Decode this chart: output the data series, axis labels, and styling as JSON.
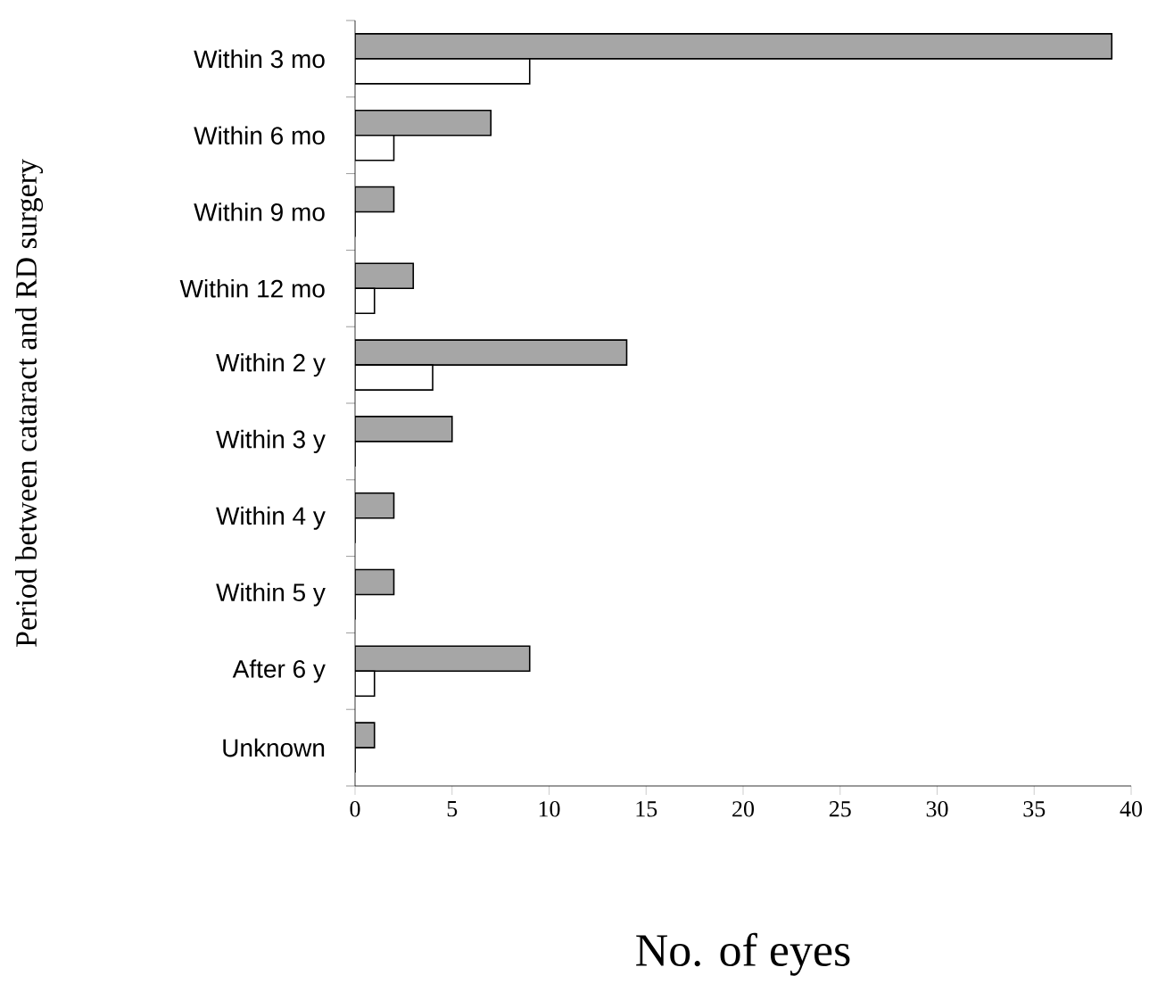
{
  "chart_data": {
    "type": "bar",
    "orientation": "horizontal",
    "xlabel": "No. of eyes",
    "ylabel": "Period between cataract and RD surgery",
    "categories": [
      "Within 3 mo",
      "Within 6 mo",
      "Within 9 mo",
      "Within 12 mo",
      "Within 2 y",
      "Within 3 y",
      "Within 4 y",
      "Within 5 y",
      "After 6 y",
      "Unknown"
    ],
    "series": [
      {
        "color": "#a6a6a6",
        "values": [
          39,
          7,
          2,
          3,
          14,
          5,
          2,
          2,
          9,
          1
        ]
      },
      {
        "color": "#ffffff",
        "values": [
          9,
          2,
          0,
          1,
          4,
          0,
          0,
          0,
          1,
          0
        ]
      }
    ],
    "xlim": [
      0,
      40
    ],
    "xticks": [
      0,
      5,
      10,
      15,
      20,
      25,
      30,
      35,
      40
    ],
    "grid": false
  }
}
